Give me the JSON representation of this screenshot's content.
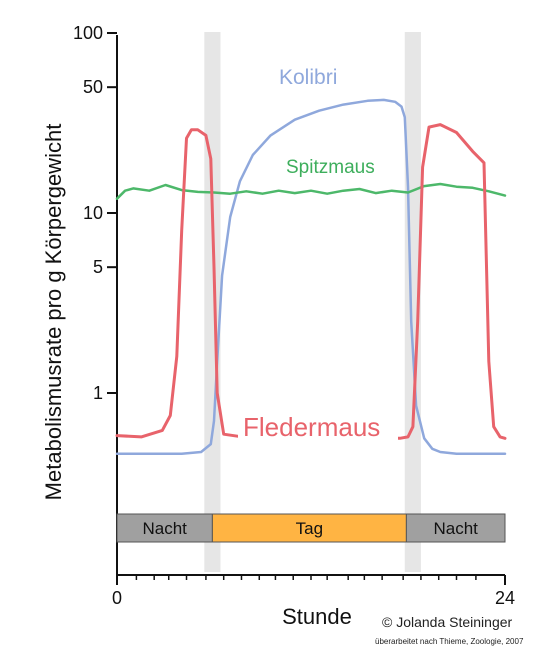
{
  "chart_data": {
    "type": "line",
    "title": "",
    "xlabel": "Stunde",
    "ylabel": "Metabolismusrate pro g Körpergewicht",
    "y_scale": "log",
    "ylim": [
      0.3,
      100
    ],
    "xlim": [
      0,
      24
    ],
    "y_ticks": [
      1,
      5,
      10,
      50,
      100
    ],
    "y_tick_labels": [
      "1",
      "5",
      "10",
      "50",
      "100"
    ],
    "x_tick_labels": [
      "0",
      "24"
    ],
    "x_ticks_labeled": [
      0,
      24
    ],
    "x_minor_ticks": [
      1.2,
      2.3,
      3.2,
      4.3,
      5.5,
      6.6,
      7.7,
      8.8,
      9.8,
      10.9,
      12.0,
      13.0,
      14.3,
      15.3,
      16.4,
      17.7,
      18.8,
      19.9,
      21.0,
      22.2
    ],
    "grid": false,
    "transition_bands": [
      [
        5.4,
        6.4
      ],
      [
        17.8,
        18.8
      ]
    ],
    "series": [
      {
        "name": "Kolibri",
        "color": "#8FA8DC",
        "x": [
          0,
          4.0,
          5.2,
          5.8,
          6.0,
          6.2,
          6.5,
          7.0,
          7.6,
          8.4,
          9.5,
          11.0,
          12.5,
          14.0,
          15.5,
          16.5,
          17.2,
          17.6,
          17.8,
          18.0,
          18.2,
          18.5,
          19.0,
          19.5,
          20.0,
          21.0,
          22.0,
          23.0,
          24.0
        ],
        "y": [
          0.46,
          0.46,
          0.47,
          0.52,
          0.7,
          1.5,
          4.5,
          9.5,
          15,
          21,
          27,
          33,
          37,
          40,
          42,
          42.5,
          41.5,
          39,
          34,
          14,
          2.5,
          0.85,
          0.56,
          0.49,
          0.47,
          0.46,
          0.46,
          0.46,
          0.46
        ]
      },
      {
        "name": "Spitzmaus",
        "color": "#4DB86A",
        "x": [
          0,
          0.5,
          1.0,
          2.0,
          3.0,
          4.0,
          5.0,
          6.0,
          7.0,
          8.0,
          9.0,
          10.0,
          11.0,
          12.0,
          13.0,
          14.0,
          15.0,
          16.0,
          17.0,
          18.0,
          19.0,
          20.0,
          21.0,
          22.0,
          23.0,
          24.0
        ],
        "y": [
          12.0,
          13.3,
          13.7,
          13.3,
          14.3,
          13.4,
          13.1,
          13.0,
          12.8,
          13.2,
          12.8,
          13.3,
          12.9,
          13.3,
          12.8,
          13.3,
          13.6,
          12.9,
          13.3,
          13.0,
          14.1,
          14.5,
          14.0,
          13.8,
          13.2,
          12.5
        ]
      },
      {
        "name": "Fledermaus",
        "color": "#E8636B",
        "x": [
          0,
          1.5,
          2.8,
          3.3,
          3.7,
          4.0,
          4.3,
          4.6,
          5.0,
          5.5,
          5.8,
          6.0,
          6.2,
          6.6,
          7.5,
          9.0,
          11.0,
          13.0,
          15.0,
          16.5,
          17.5,
          18.0,
          18.3,
          18.6,
          18.9,
          19.3,
          20.0,
          21.0,
          22.0,
          22.7,
          23.0,
          23.3,
          23.7,
          24.0
        ],
        "y": [
          0.58,
          0.57,
          0.62,
          0.75,
          1.6,
          8.0,
          26,
          29,
          29,
          27,
          20,
          5.0,
          1.0,
          0.59,
          0.575,
          0.57,
          0.565,
          0.56,
          0.56,
          0.56,
          0.56,
          0.57,
          0.65,
          2.5,
          18,
          30,
          31,
          28,
          22,
          19,
          1.5,
          0.65,
          0.57,
          0.56
        ]
      }
    ],
    "series_labels": [
      "Kolibri",
      "Spitzmaus",
      "Fledermaus"
    ],
    "day_night_bar": [
      {
        "label": "Nacht",
        "from": 0,
        "to": 5.9,
        "color": "#A0A0A0"
      },
      {
        "label": "Tag",
        "from": 5.9,
        "to": 17.9,
        "color": "#FFB443"
      },
      {
        "label": "Nacht",
        "from": 17.9,
        "to": 24,
        "color": "#A0A0A0"
      }
    ],
    "credit": "© Jolanda Steininger",
    "credit_sub": "überarbeitet nach Thieme, Zoologie, 2007"
  }
}
